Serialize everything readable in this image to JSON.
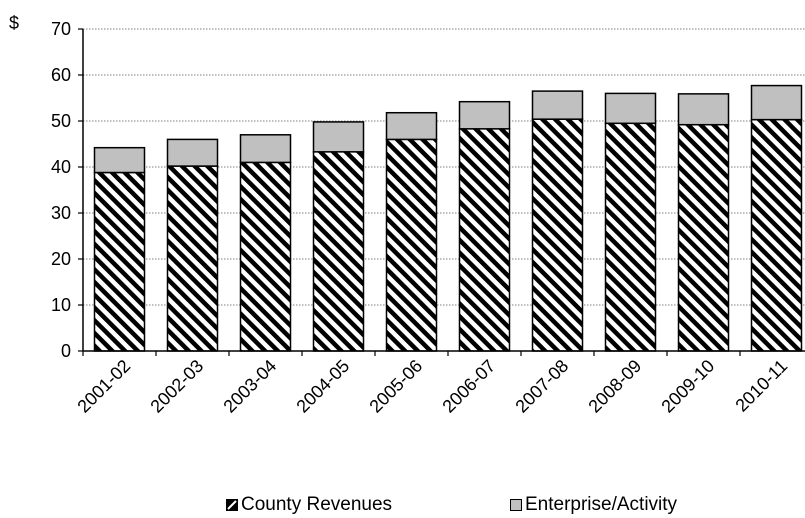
{
  "chart_data": {
    "type": "bar",
    "stacked": true,
    "ylabel": "$",
    "ylim": [
      0,
      70
    ],
    "yticks": [
      0,
      10,
      20,
      30,
      40,
      50,
      60,
      70
    ],
    "grid": true,
    "legend_position": "bottom",
    "categories": [
      "2001-02",
      "2002-03",
      "2003-04",
      "2004-05",
      "2005-06",
      "2006-07",
      "2007-08",
      "2008-09",
      "2009-10",
      "2010-11"
    ],
    "series": [
      {
        "name": "County Revenues",
        "values": [
          38.8,
          40.2,
          41.0,
          43.3,
          46.0,
          48.3,
          50.4,
          49.5,
          49.2,
          50.3
        ],
        "color": "#000000",
        "pattern": "diagonal-hatch"
      },
      {
        "name": "Enterprise/Activity",
        "values": [
          5.4,
          5.8,
          6.0,
          6.5,
          5.8,
          5.9,
          6.1,
          6.5,
          6.7,
          7.4
        ],
        "color": "#c0c0c0"
      }
    ]
  }
}
